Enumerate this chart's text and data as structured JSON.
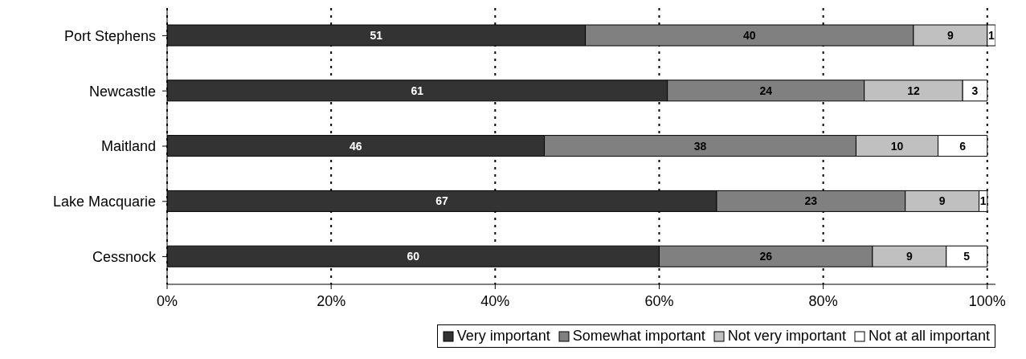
{
  "chart_data": {
    "type": "bar",
    "orientation": "horizontal",
    "stacked": true,
    "categories": [
      "Port Stephens",
      "Newcastle",
      "Maitland",
      "Lake Macquarie",
      "Cessnock"
    ],
    "series": [
      {
        "name": "Very important",
        "color": "#333333",
        "values": [
          51,
          61,
          46,
          67,
          60
        ]
      },
      {
        "name": "Somewhat important",
        "color": "#808080",
        "values": [
          40,
          24,
          38,
          23,
          26
        ]
      },
      {
        "name": "Not very important",
        "color": "#c0c0c0",
        "values": [
          9,
          12,
          10,
          9,
          9
        ]
      },
      {
        "name": "Not at all important",
        "color": "#ffffff",
        "values": [
          1,
          3,
          6,
          1,
          5
        ]
      }
    ],
    "xlim": [
      0,
      101
    ],
    "xticks": [
      {
        "value": 0,
        "label": "0%"
      },
      {
        "value": 20,
        "label": "20%"
      },
      {
        "value": 40,
        "label": "40%"
      },
      {
        "value": 60,
        "label": "60%"
      },
      {
        "value": 80,
        "label": "80%"
      },
      {
        "value": 100,
        "label": "100%"
      }
    ],
    "grid": "x",
    "legend": "bottom right",
    "data_labels": true
  }
}
